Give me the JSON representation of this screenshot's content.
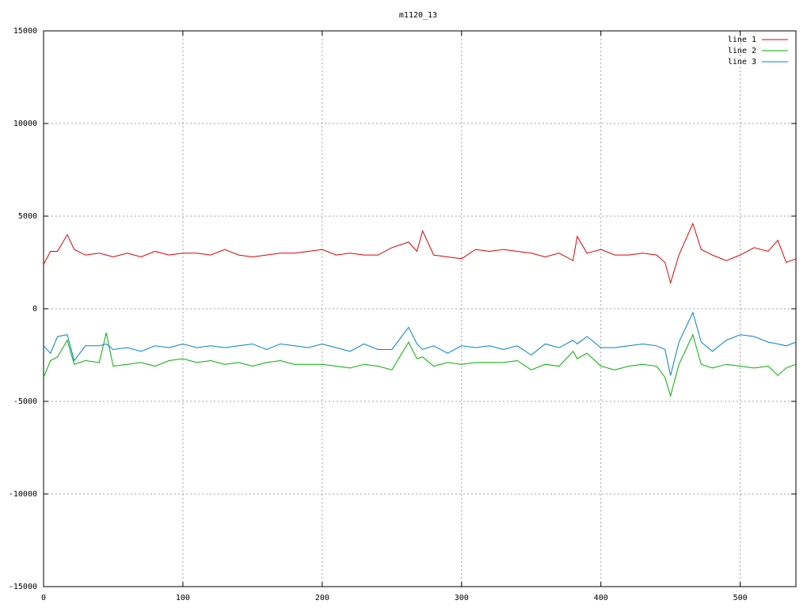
{
  "chart_data": {
    "type": "line",
    "title": "m1120_13",
    "x": [
      0,
      5,
      10,
      17,
      22,
      30,
      40,
      45,
      50,
      60,
      70,
      80,
      90,
      100,
      110,
      120,
      130,
      140,
      150,
      160,
      170,
      180,
      190,
      200,
      210,
      220,
      230,
      240,
      250,
      262,
      268,
      272,
      280,
      290,
      300,
      310,
      320,
      330,
      340,
      350,
      360,
      370,
      380,
      383,
      390,
      400,
      410,
      420,
      430,
      440,
      446,
      450,
      456,
      466,
      472,
      480,
      490,
      500,
      510,
      520,
      527,
      533,
      540
    ],
    "series": [
      {
        "name": "line 1",
        "color": "#e00000",
        "values": [
          2400,
          3100,
          3100,
          4000,
          3200,
          2900,
          3000,
          2900,
          2800,
          3000,
          2800,
          3100,
          2900,
          3000,
          3000,
          2900,
          3200,
          2900,
          2800,
          2900,
          3000,
          3000,
          3100,
          3200,
          2900,
          3000,
          2900,
          2900,
          3300,
          3600,
          3100,
          4200,
          2900,
          2800,
          2700,
          3200,
          3100,
          3200,
          3100,
          3000,
          2800,
          3000,
          2600,
          3900,
          3000,
          3200,
          2900,
          2900,
          3000,
          2900,
          2500,
          1400,
          2900,
          4600,
          3200,
          2900,
          2600,
          2900,
          3300,
          3100,
          3700,
          2500,
          2700
        ]
      },
      {
        "name": "line 2",
        "color": "#00b000",
        "values": [
          -3700,
          -2800,
          -2600,
          -1700,
          -3000,
          -2800,
          -2900,
          -1300,
          -3100,
          -3000,
          -2900,
          -3100,
          -2800,
          -2700,
          -2900,
          -2800,
          -3000,
          -2900,
          -3100,
          -2900,
          -2800,
          -3000,
          -3000,
          -3000,
          -3100,
          -3200,
          -3000,
          -3100,
          -3300,
          -1800,
          -2700,
          -2600,
          -3100,
          -2900,
          -3000,
          -2900,
          -2900,
          -2900,
          -2800,
          -3300,
          -3000,
          -3100,
          -2300,
          -2700,
          -2400,
          -3100,
          -3300,
          -3100,
          -3000,
          -3100,
          -3700,
          -4700,
          -3000,
          -1400,
          -3000,
          -3200,
          -3000,
          -3100,
          -3200,
          -3100,
          -3600,
          -3200,
          -3000
        ]
      },
      {
        "name": "line 3",
        "color": "#0080d0",
        "values": [
          -2000,
          -2400,
          -1500,
          -1400,
          -2800,
          -2000,
          -2000,
          -1900,
          -2200,
          -2100,
          -2300,
          -2000,
          -2100,
          -1900,
          -2100,
          -2000,
          -2100,
          -2000,
          -1900,
          -2200,
          -1900,
          -2000,
          -2100,
          -1900,
          -2100,
          -2300,
          -1900,
          -2200,
          -2200,
          -1000,
          -1900,
          -2200,
          -2000,
          -2400,
          -2000,
          -2100,
          -2000,
          -2200,
          -2000,
          -2500,
          -1900,
          -2100,
          -1700,
          -1900,
          -1500,
          -2100,
          -2100,
          -2000,
          -1900,
          -2000,
          -2200,
          -3600,
          -1800,
          -200,
          -1800,
          -2300,
          -1700,
          -1400,
          -1500,
          -1800,
          -1900,
          -2000,
          -1800
        ]
      }
    ],
    "xlim": [
      0,
      540
    ],
    "xticks": [
      0,
      100,
      200,
      300,
      400,
      500
    ],
    "ylim": [
      -15000,
      15000
    ],
    "yticks": [
      -15000,
      -10000,
      -5000,
      0,
      5000,
      10000,
      15000
    ],
    "grid": true,
    "legend": "top-right"
  }
}
